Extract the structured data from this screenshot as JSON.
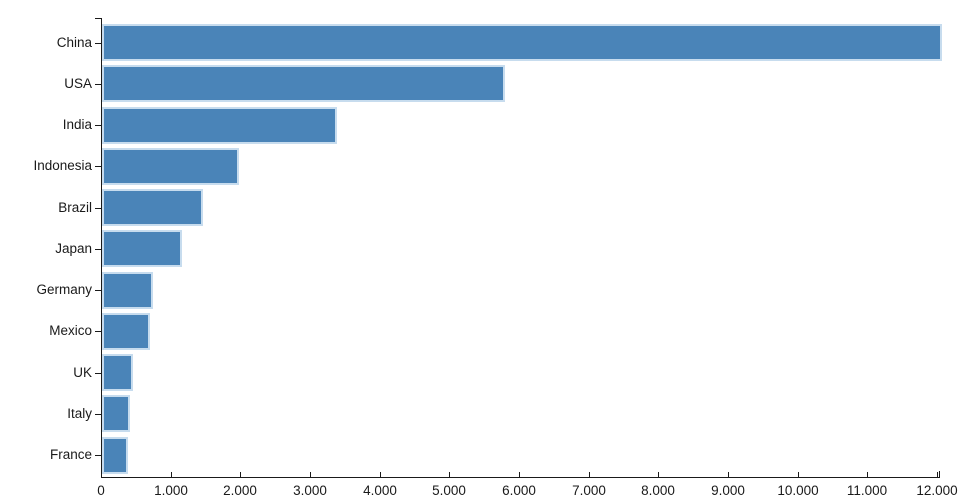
{
  "chart_data": {
    "type": "bar",
    "orientation": "horizontal",
    "title": "",
    "xlabel": "",
    "ylabel": "",
    "categories": [
      "China",
      "USA",
      "India",
      "Indonesia",
      "Brazil",
      "Japan",
      "Germany",
      "Mexico",
      "UK",
      "Italy",
      "France"
    ],
    "values": [
      12060,
      5780,
      3370,
      1970,
      1455,
      1150,
      730,
      690,
      445,
      405,
      370
    ],
    "xlim": [
      0,
      12060
    ],
    "x_ticks": [
      0,
      1000,
      2000,
      3000,
      4000,
      5000,
      6000,
      7000,
      8000,
      9000,
      10000,
      11000,
      12000
    ],
    "x_tick_labels": [
      "0",
      "1.000",
      "2.000",
      "3.000",
      "4.000",
      "5.000",
      "6.000",
      "7.000",
      "8.000",
      "9.000",
      "10.000",
      "11.000",
      "12.000"
    ],
    "grid": false,
    "legend": null,
    "colors": {
      "bar_fill": "#4a84b8",
      "bar_border": "#c7dcee",
      "axis": "#1a1a1a",
      "text": "#1a1a1a",
      "background": "#ffffff"
    }
  }
}
